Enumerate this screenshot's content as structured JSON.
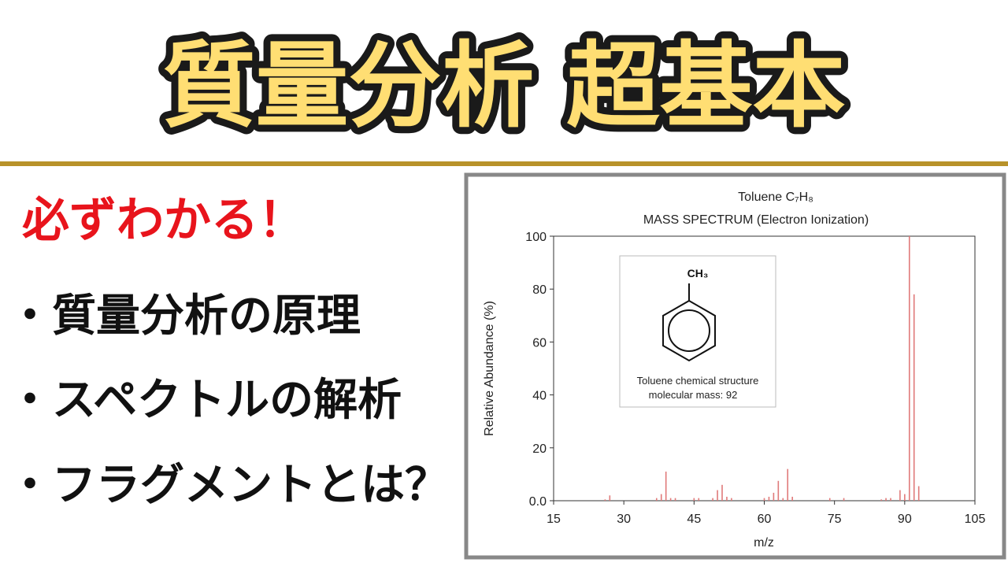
{
  "header": {
    "title": "質量分析 超基本"
  },
  "tagline": "必ずわかる！",
  "bullets": [
    "・質量分析の原理",
    "・スペクトルの解析",
    "・フラグメントとは？"
  ],
  "chart_data": {
    "type": "bar",
    "title": "Toluene  C₇H₈",
    "subtitle": "MASS SPECTRUM (Electron Ionization)",
    "x_label": "m/z",
    "y_label": "Relative Abundance (%)",
    "structure": {
      "label": "CH₃",
      "caption": "Toluene chemical structure",
      "mass": "molecular mass: 92"
    },
    "x": [
      26,
      27,
      37,
      38,
      39,
      40,
      41,
      45,
      46,
      49,
      50,
      51,
      52,
      53,
      60,
      61,
      62,
      63,
      64,
      65,
      66,
      74,
      77,
      85,
      86,
      87,
      89,
      90,
      91,
      92,
      93
    ],
    "values": [
      0.5,
      2,
      1,
      2.5,
      11,
      1,
      1,
      1,
      1,
      1,
      4,
      6,
      1.5,
      1,
      1,
      1.5,
      3,
      7.5,
      1,
      12,
      1.5,
      1,
      1,
      0.5,
      1,
      1,
      4,
      2.5,
      100,
      78,
      5.5
    ],
    "color": "#e07a7a",
    "xlim": [
      15,
      105
    ],
    "xticks": [
      15,
      30,
      45,
      60,
      75,
      90,
      105
    ],
    "ylim": [
      0,
      100
    ],
    "yticks": [
      {
        "value": 0,
        "label": "0.0"
      },
      20,
      40,
      60,
      80,
      100
    ],
    "grid": false
  }
}
